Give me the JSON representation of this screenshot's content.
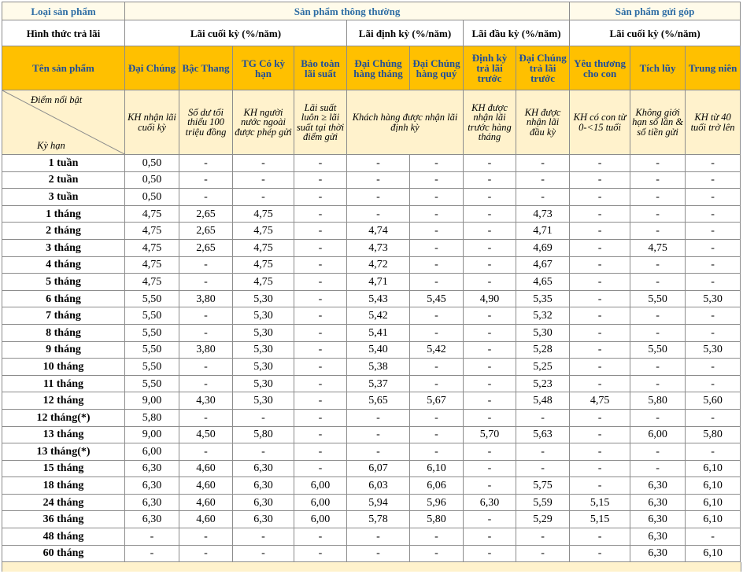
{
  "header": {
    "group_label": "Loại sản phẩm",
    "groups": [
      "Sản phẩm thông thường",
      "Sản phẩm gửi góp"
    ],
    "payment_label": "Hình thức trả lãi",
    "payments": [
      "Lãi cuối kỳ (%/năm)",
      "Lãi định kỳ (%/năm)",
      "Lãi đầu kỳ (%/năm)",
      "Lãi cuối kỳ (%/năm)"
    ],
    "product_label": "Tên sản phẩm",
    "products": [
      "Đại Chúng",
      "Bậc Thang",
      "TG Có kỳ hạn",
      "Bảo toàn lãi suất",
      "Đại Chúng hàng tháng",
      "Đại Chúng hàng quý",
      "Định kỳ trả lãi trước",
      "Đại Chúng trả lãi trước",
      "Yêu thương cho con",
      "Tích lũy",
      "Trung niên"
    ],
    "highlight_label": "Điểm nổi bật",
    "term_label": "Kỳ hạn",
    "highlights": [
      "KH nhận lãi cuối kỳ",
      "Số dư tối thiểu 100 triệu đồng",
      "KH người nước ngoài được phép gửi",
      "Lãi suất luôn ≥ lãi suất tại thời điểm gửi",
      "Khách hàng được nhận lãi định kỳ",
      "KH được nhận lãi trước hàng tháng",
      "KH được nhận lãi đầu kỳ",
      "KH có con từ 0-<15 tuổi",
      "Không giới hạn số lần & số tiền gửi",
      "KH từ 40 tuổi trở lên"
    ]
  },
  "table": {
    "rows": [
      [
        "1 tuần",
        "0,50",
        "-",
        "-",
        "-",
        "-",
        "-",
        "-",
        "-",
        "-",
        "-",
        "-"
      ],
      [
        "2 tuần",
        "0,50",
        "-",
        "-",
        "-",
        "-",
        "-",
        "-",
        "-",
        "-",
        "-",
        "-"
      ],
      [
        "3 tuần",
        "0,50",
        "-",
        "-",
        "-",
        "-",
        "-",
        "-",
        "-",
        "-",
        "-",
        "-"
      ],
      [
        "1 tháng",
        "4,75",
        "2,65",
        "4,75",
        "-",
        "-",
        "-",
        "-",
        "4,73",
        "-",
        "-",
        "-"
      ],
      [
        "2 tháng",
        "4,75",
        "2,65",
        "4,75",
        "-",
        "4,74",
        "-",
        "-",
        "4,71",
        "-",
        "-",
        "-"
      ],
      [
        "3 tháng",
        "4,75",
        "2,65",
        "4,75",
        "-",
        "4,73",
        "-",
        "-",
        "4,69",
        "-",
        "4,75",
        "-"
      ],
      [
        "4 tháng",
        "4,75",
        "-",
        "4,75",
        "-",
        "4,72",
        "-",
        "-",
        "4,67",
        "-",
        "-",
        "-"
      ],
      [
        "5 tháng",
        "4,75",
        "-",
        "4,75",
        "-",
        "4,71",
        "-",
        "-",
        "4,65",
        "-",
        "-",
        "-"
      ],
      [
        "6 tháng",
        "5,50",
        "3,80",
        "5,30",
        "-",
        "5,43",
        "5,45",
        "4,90",
        "5,35",
        "-",
        "5,50",
        "5,30"
      ],
      [
        "7 tháng",
        "5,50",
        "-",
        "5,30",
        "-",
        "5,42",
        "-",
        "-",
        "5,32",
        "-",
        "-",
        "-"
      ],
      [
        "8 tháng",
        "5,50",
        "-",
        "5,30",
        "-",
        "5,41",
        "-",
        "-",
        "5,30",
        "-",
        "-",
        "-"
      ],
      [
        "9 tháng",
        "5,50",
        "3,80",
        "5,30",
        "-",
        "5,40",
        "5,42",
        "-",
        "5,28",
        "-",
        "5,50",
        "5,30"
      ],
      [
        "10 tháng",
        "5,50",
        "-",
        "5,30",
        "-",
        "5,38",
        "-",
        "-",
        "5,25",
        "-",
        "-",
        "-"
      ],
      [
        "11 tháng",
        "5,50",
        "-",
        "5,30",
        "-",
        "5,37",
        "-",
        "-",
        "5,23",
        "-",
        "-",
        "-"
      ],
      [
        "12 tháng",
        "9,00",
        "4,30",
        "5,30",
        "-",
        "5,65",
        "5,67",
        "-",
        "5,48",
        "4,75",
        "5,80",
        "5,60"
      ],
      [
        "12 tháng(*)",
        "5,80",
        "-",
        "-",
        "-",
        "-",
        "-",
        "-",
        "-",
        "-",
        "-",
        "-"
      ],
      [
        "13 tháng",
        "9,00",
        "4,50",
        "5,80",
        "-",
        "-",
        "-",
        "5,70",
        "5,63",
        "-",
        "6,00",
        "5,80"
      ],
      [
        "13 tháng(*)",
        "6,00",
        "-",
        "-",
        "-",
        "-",
        "-",
        "-",
        "-",
        "-",
        "-",
        "-"
      ],
      [
        "15 tháng",
        "6,30",
        "4,60",
        "6,30",
        "-",
        "6,07",
        "6,10",
        "-",
        "-",
        "-",
        "-",
        "6,10"
      ],
      [
        "18 tháng",
        "6,30",
        "4,60",
        "6,30",
        "6,00",
        "6,03",
        "6,06",
        "-",
        "5,75",
        "-",
        "6,30",
        "6,10"
      ],
      [
        "24 tháng",
        "6,30",
        "4,60",
        "6,30",
        "6,00",
        "5,94",
        "5,96",
        "6,30",
        "5,59",
        "5,15",
        "6,30",
        "6,10"
      ],
      [
        "36 tháng",
        "6,30",
        "4,60",
        "6,30",
        "6,00",
        "5,78",
        "5,80",
        "-",
        "5,29",
        "5,15",
        "6,30",
        "6,10"
      ],
      [
        "48 tháng",
        "-",
        "-",
        "-",
        "-",
        "-",
        "-",
        "-",
        "-",
        "-",
        "6,30",
        "-"
      ],
      [
        "60 tháng",
        "-",
        "-",
        "-",
        "-",
        "-",
        "-",
        "-",
        "-",
        "-",
        "6,30",
        "6,10"
      ]
    ]
  }
}
